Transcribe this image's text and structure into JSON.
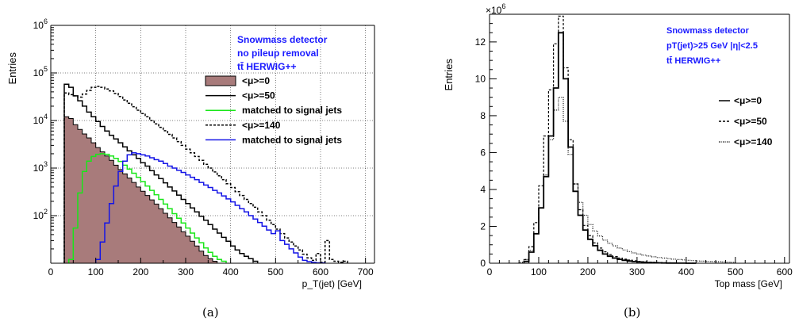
{
  "figure": {
    "captions": [
      "(a)",
      "(b)"
    ]
  },
  "chart_data": [
    {
      "type": "line",
      "panel": "(a)",
      "xlabel": "p_T(jet) [GeV]",
      "ylabel": "Entries",
      "xlim": [
        0,
        720
      ],
      "ylim": [
        10,
        1000000
      ],
      "yscale": "log",
      "xticks": [
        0,
        100,
        200,
        300,
        400,
        500,
        600,
        700
      ],
      "yticks": [
        {
          "value": 100,
          "base": "10",
          "exp": "2"
        },
        {
          "value": 1000,
          "base": "10",
          "exp": "3"
        },
        {
          "value": 10000,
          "base": "10",
          "exp": "4"
        },
        {
          "value": 100000,
          "base": "10",
          "exp": "5"
        },
        {
          "value": 1000000,
          "base": "10",
          "exp": "6"
        }
      ],
      "grid": true,
      "annotation": [
        "Snowmass detector",
        "no pileup removal",
        "tt̄ HERWIG++"
      ],
      "annotation_color": "#1a1aff",
      "legend_position": "center-right",
      "bin_width": 10,
      "series": [
        {
          "name": "<μ>=0",
          "style": "filled",
          "color": "#000000",
          "fill": "#a87b7b",
          "x_start": 30,
          "values": [
            12000,
            11000,
            8200,
            6500,
            5200,
            4300,
            3400,
            2700,
            2200,
            1800,
            1450,
            1150,
            930,
            760,
            620,
            500,
            400,
            325,
            265,
            215,
            175,
            140,
            112,
            90,
            72,
            58,
            46,
            37,
            29,
            23,
            18,
            14.5,
            12.5,
            11
          ]
        },
        {
          "name": "<μ>=50",
          "style": "solid",
          "color": "#000000",
          "x_start": 30,
          "values": [
            58000,
            50000,
            33000,
            26000,
            20000,
            15000,
            12000,
            9500,
            7500,
            6000,
            4900,
            4100,
            3400,
            2800,
            2300,
            1900,
            1600,
            1300,
            1100,
            880,
            720,
            600,
            490,
            400,
            330,
            270,
            220,
            180,
            145,
            120,
            97,
            80,
            65,
            52,
            43,
            35,
            29,
            23,
            19,
            16,
            14,
            12.5,
            11
          ]
        },
        {
          "name": "matched to signal jets",
          "style": "solid",
          "color": "#19e619",
          "x_start": 40,
          "values": [
            12,
            55,
            300,
            850,
            1400,
            1750,
            1950,
            2000,
            1950,
            1800,
            1600,
            1380,
            1150,
            950,
            780,
            640,
            520,
            420,
            340,
            275,
            220,
            175,
            140,
            110,
            88,
            70,
            55,
            43,
            34,
            27,
            21,
            17,
            14,
            12,
            11
          ]
        },
        {
          "name": "<μ>=140",
          "style": "dashed",
          "color": "#000000",
          "x_start": 30,
          "values": [
            38000,
            35000,
            33000,
            31000,
            36000,
            43000,
            50000,
            52000,
            50000,
            46000,
            42000,
            37000,
            32000,
            27000,
            23000,
            19500,
            16500,
            14000,
            12000,
            10000,
            8500,
            7200,
            6100,
            5100,
            4300,
            3600,
            3000,
            2500,
            2100,
            1750,
            1450,
            1200,
            1000,
            830,
            690,
            570,
            470,
            390,
            320,
            265,
            220,
            180,
            150,
            120,
            100,
            80,
            65,
            52,
            42,
            34,
            28,
            23,
            19,
            15.5,
            13,
            11.5,
            16,
            10.5,
            30,
            12,
            11,
            10.5,
            11
          ]
        },
        {
          "name": "matched to signal jets",
          "style": "solid",
          "color": "#1414e6",
          "x_start": 100,
          "values": [
            12,
            28,
            70,
            180,
            420,
            850,
            1400,
            1900,
            2100,
            2000,
            1900,
            1800,
            1650,
            1500,
            1400,
            1250,
            1100,
            1000,
            900,
            810,
            720,
            640,
            570,
            500,
            440,
            390,
            340,
            300,
            260,
            225,
            195,
            165,
            140,
            120,
            100,
            85,
            72,
            60,
            50,
            42,
            48,
            30,
            25,
            20,
            16.5,
            13.5,
            11.5,
            10.8,
            10.4,
            10.2,
            10.1
          ]
        }
      ]
    },
    {
      "type": "line",
      "panel": "(b)",
      "xlabel": "Top mass [GeV]",
      "ylabel": "Entries",
      "multiplier_base": "×10",
      "multiplier_exp": "6",
      "xlim": [
        0,
        610
      ],
      "ylim": [
        0,
        13.5
      ],
      "xticks": [
        0,
        100,
        200,
        300,
        400,
        500,
        600
      ],
      "yticks": [
        0,
        2,
        4,
        6,
        8,
        10,
        12
      ],
      "grid": false,
      "annotation": [
        "Snowmass detector",
        "pT(jet)>25 GeV |η|<2.5",
        "tt̄ HERWIG++"
      ],
      "annotation_color": "#1a1aff",
      "legend_position": "right",
      "bin_width": 10,
      "series": [
        {
          "name": "<μ>=0",
          "style": "solid",
          "color": "#000000",
          "x_start": 70,
          "values": [
            0.1,
            0.6,
            1.6,
            3.0,
            4.7,
            6.9,
            9.5,
            12.5,
            10.0,
            6.3,
            3.9,
            2.6,
            1.8,
            1.3,
            0.95,
            0.7,
            0.5,
            0.38,
            0.28,
            0.21,
            0.16,
            0.12,
            0.09,
            0.07,
            0.05,
            0.04,
            0.03,
            0.02,
            0.015,
            0.01,
            0.008,
            0.005,
            0.003,
            0.002,
            0.001
          ]
        },
        {
          "name": "<μ>=50",
          "style": "dashed",
          "color": "#000000",
          "x_start": 70,
          "values": [
            0.2,
            0.9,
            2.2,
            4.2,
            6.9,
            9.4,
            11.9,
            13.4,
            10.6,
            6.7,
            4.3,
            2.9,
            2.05,
            1.5,
            1.1,
            0.82,
            0.62,
            0.47,
            0.36,
            0.28,
            0.22,
            0.17,
            0.13,
            0.1,
            0.08,
            0.06,
            0.05,
            0.04,
            0.03,
            0.02,
            0.015,
            0.01,
            0.008,
            0.005,
            0.003
          ]
        },
        {
          "name": "<μ>=140",
          "style": "dotted",
          "color": "#000000",
          "x_start": 60,
          "values": [
            0.05,
            0.2,
            0.7,
            1.6,
            3.0,
            4.8,
            6.7,
            8.3,
            9.0,
            7.7,
            5.9,
            4.3,
            3.3,
            2.6,
            2.1,
            1.75,
            1.48,
            1.25,
            1.08,
            0.94,
            0.82,
            0.72,
            0.63,
            0.56,
            0.5,
            0.44,
            0.39,
            0.35,
            0.31,
            0.28,
            0.25,
            0.22,
            0.2,
            0.18,
            0.16,
            0.14,
            0.12,
            0.11,
            0.1,
            0.09,
            0.08,
            0.07,
            0.06,
            0.05
          ]
        }
      ]
    }
  ]
}
